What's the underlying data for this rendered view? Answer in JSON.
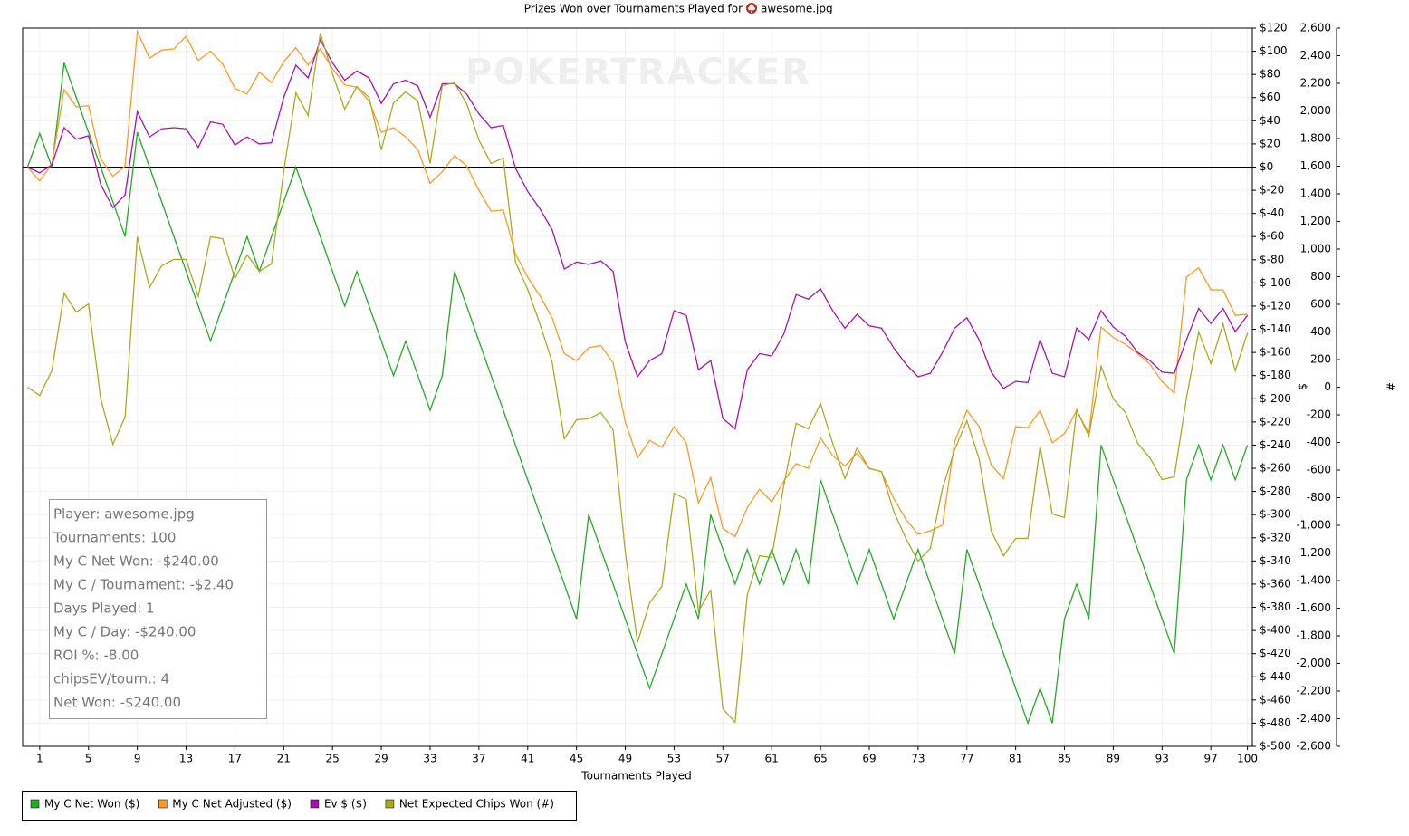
{
  "chart_data": {
    "type": "line",
    "title": "Prizes Won over Tournaments Played for",
    "player": "awesome.jpg",
    "watermark": "POKERTRACKER",
    "xlabel": "Tournaments Played",
    "ylabel": "$",
    "y2label": "#",
    "grid": true,
    "zero_line": true,
    "x": [
      0,
      1,
      2,
      3,
      4,
      5,
      6,
      7,
      8,
      9,
      10,
      11,
      12,
      13,
      14,
      15,
      16,
      17,
      18,
      19,
      20,
      21,
      22,
      23,
      24,
      25,
      26,
      27,
      28,
      29,
      30,
      31,
      32,
      33,
      34,
      35,
      36,
      37,
      38,
      39,
      40,
      41,
      42,
      43,
      44,
      45,
      46,
      47,
      48,
      49,
      50,
      51,
      52,
      53,
      54,
      55,
      56,
      57,
      58,
      59,
      60,
      61,
      62,
      63,
      64,
      65,
      66,
      67,
      68,
      69,
      70,
      71,
      72,
      73,
      74,
      75,
      76,
      77,
      78,
      79,
      80,
      81,
      82,
      83,
      84,
      85,
      86,
      87,
      88,
      89,
      90,
      91,
      92,
      93,
      94,
      95,
      96,
      97,
      98,
      99,
      100
    ],
    "xlim": [
      -0.4,
      100.4
    ],
    "xticks": [
      1,
      5,
      9,
      13,
      17,
      21,
      25,
      29,
      33,
      37,
      41,
      45,
      49,
      53,
      57,
      61,
      65,
      69,
      73,
      77,
      81,
      85,
      89,
      93,
      97,
      100
    ],
    "ylim": [
      -500,
      120
    ],
    "yticks": [
      {
        "value": 120,
        "label": "$120"
      },
      {
        "value": 100,
        "label": "$100"
      },
      {
        "value": 80,
        "label": "$80"
      },
      {
        "value": 60,
        "label": "$60"
      },
      {
        "value": 40,
        "label": "$40"
      },
      {
        "value": 20,
        "label": "$20"
      },
      {
        "value": 0,
        "label": "$0"
      },
      {
        "value": -20,
        "label": "$-20"
      },
      {
        "value": -40,
        "label": "$-40"
      },
      {
        "value": -60,
        "label": "$-60"
      },
      {
        "value": -80,
        "label": "$-80"
      },
      {
        "value": -100,
        "label": "$-100"
      },
      {
        "value": -120,
        "label": "$-120"
      },
      {
        "value": -140,
        "label": "$-140"
      },
      {
        "value": -160,
        "label": "$-160"
      },
      {
        "value": -180,
        "label": "$-180"
      },
      {
        "value": -200,
        "label": "$-200"
      },
      {
        "value": -220,
        "label": "$-220"
      },
      {
        "value": -240,
        "label": "$-240"
      },
      {
        "value": -260,
        "label": "$-260"
      },
      {
        "value": -280,
        "label": "$-280"
      },
      {
        "value": -300,
        "label": "$-300"
      },
      {
        "value": -320,
        "label": "$-320"
      },
      {
        "value": -340,
        "label": "$-340"
      },
      {
        "value": -360,
        "label": "$-360"
      },
      {
        "value": -380,
        "label": "$-380"
      },
      {
        "value": -400,
        "label": "$-400"
      },
      {
        "value": -420,
        "label": "$-420"
      },
      {
        "value": -440,
        "label": "$-440"
      },
      {
        "value": -460,
        "label": "$-460"
      },
      {
        "value": -480,
        "label": "$-480"
      },
      {
        "value": -500,
        "label": "$-500"
      }
    ],
    "y2lim": [
      -2600,
      2600
    ],
    "y2ticks": [
      {
        "value": 2600,
        "label": "2,600"
      },
      {
        "value": 2400,
        "label": "2,400"
      },
      {
        "value": 2200,
        "label": "2,200"
      },
      {
        "value": 2000,
        "label": "2,000"
      },
      {
        "value": 1800,
        "label": "1,800"
      },
      {
        "value": 1600,
        "label": "1,600"
      },
      {
        "value": 1400,
        "label": "1,400"
      },
      {
        "value": 1200,
        "label": "1,200"
      },
      {
        "value": 1000,
        "label": "1,000"
      },
      800,
      600,
      400,
      200,
      0,
      -200,
      -400,
      -600,
      -800,
      {
        "value": -1000,
        "label": "-1,000"
      },
      {
        "value": -1200,
        "label": "-1,200"
      },
      {
        "value": -1400,
        "label": "-1,400"
      },
      {
        "value": -1600,
        "label": "-1,600"
      },
      {
        "value": -1800,
        "label": "-1,800"
      },
      {
        "value": -2000,
        "label": "-2,000"
      },
      {
        "value": -2200,
        "label": "-2,200"
      },
      {
        "value": -2400,
        "label": "-2,400"
      },
      {
        "value": -2600,
        "label": "-2,600"
      }
    ],
    "series": [
      {
        "name": "My C Net Won ($)",
        "color": "#22aa22",
        "values": [
          0,
          29,
          0,
          90,
          60,
          30,
          0,
          -30,
          -60,
          30,
          0,
          -30,
          -60,
          -90,
          -120,
          -150,
          -120,
          -90,
          -60,
          -90,
          -60,
          -30,
          0,
          -30,
          -60,
          -90,
          -120,
          -90,
          -120,
          -150,
          -180,
          -150,
          -180,
          -210,
          -180,
          -90,
          -120,
          -150,
          -180,
          -210,
          -240,
          -270,
          -300,
          -330,
          -360,
          -390,
          -300,
          -330,
          -360,
          -390,
          -420,
          -450,
          -420,
          -390,
          -360,
          -390,
          -300,
          -330,
          -360,
          -330,
          -360,
          -330,
          -360,
          -330,
          -360,
          -270,
          -300,
          -330,
          -360,
          -330,
          -360,
          -390,
          -360,
          -330,
          -360,
          -390,
          -420,
          -330,
          -360,
          -390,
          -420,
          -450,
          -480,
          -450,
          -480,
          -390,
          -360,
          -390,
          -240,
          -270,
          -300,
          -330,
          -360,
          -390,
          -420,
          -270,
          -240,
          -270,
          -240,
          -270,
          -240
        ]
      },
      {
        "name": "My C Net Adjusted ($)",
        "color": "#ff9922",
        "values": [
          0,
          -12,
          3,
          67,
          52,
          53,
          7,
          -8,
          1,
          117,
          94,
          101,
          102,
          113,
          92,
          100,
          89,
          68,
          63,
          82,
          73,
          91,
          103,
          88,
          102,
          85,
          71,
          69,
          57,
          30,
          34,
          26,
          15,
          -14,
          -4,
          10,
          1,
          -20,
          -38,
          -37,
          -75,
          -95,
          -111,
          -130,
          -161,
          -167,
          -156,
          -154,
          -169,
          -220,
          -251,
          -236,
          -242,
          -224,
          -238,
          -290,
          -268,
          -312,
          -319,
          -294,
          -278,
          -289,
          -271,
          -256,
          -260,
          -234,
          -249,
          -258,
          -247,
          -260,
          -263,
          -286,
          -304,
          -317,
          -314,
          -309,
          -237,
          -210,
          -224,
          -257,
          -269,
          -224,
          -225,
          -210,
          -238,
          -230,
          -210,
          -230,
          -138,
          -147,
          -153,
          -161,
          -170,
          -185,
          -195,
          -95,
          -87,
          -106,
          -106,
          -128,
          -127
        ]
      },
      {
        "name": "Ev $ ($)",
        "color": "#aa11aa",
        "values": [
          0,
          -5,
          2,
          34,
          24,
          27,
          -15,
          -35,
          -24,
          48,
          26,
          33,
          34,
          33,
          17,
          39,
          37,
          19,
          26,
          20,
          21,
          60,
          88,
          77,
          110,
          90,
          75,
          83,
          77,
          55,
          72,
          75,
          70,
          43,
          72,
          72,
          63,
          46,
          34,
          36,
          -1,
          -21,
          -36,
          -54,
          -88,
          -82,
          -84,
          -81,
          -90,
          -151,
          -181,
          -167,
          -161,
          -124,
          -128,
          -175,
          -167,
          -217,
          -226,
          -175,
          -161,
          -163,
          -144,
          -110,
          -114,
          -105,
          -124,
          -139,
          -127,
          -137,
          -139,
          -156,
          -170,
          -181,
          -178,
          -160,
          -139,
          -130,
          -149,
          -177,
          -191,
          -185,
          -186,
          -149,
          -178,
          -181,
          -139,
          -149,
          -124,
          -138,
          -146,
          -160,
          -167,
          -177,
          -178,
          -149,
          -122,
          -135,
          -122,
          -142,
          -128
        ]
      },
      {
        "name": "Net Expected Chips Won (#)",
        "color": "#aaaa22",
        "axis": "y2",
        "values": [
          0,
          -60,
          120,
          680,
          544,
          603,
          -85,
          -413,
          -216,
          1089,
          721,
          879,
          925,
          925,
          656,
          1089,
          1075,
          787,
          957,
          839,
          892,
          1561,
          2131,
          1967,
          2564,
          2269,
          2013,
          2177,
          2098,
          1718,
          2059,
          2138,
          2072,
          1620,
          2184,
          2203,
          2052,
          1790,
          1620,
          1659,
          905,
          708,
          459,
          184,
          -374,
          -236,
          -229,
          -184,
          -308,
          -1193,
          -1849,
          -1560,
          -1443,
          -767,
          -813,
          -1620,
          -1469,
          -2328,
          -2426,
          -1502,
          -1220,
          -1233,
          -708,
          -262,
          -302,
          -118,
          -406,
          -662,
          -439,
          -590,
          -610,
          -898,
          -1095,
          -1259,
          -1167,
          -734,
          -452,
          -243,
          -518,
          -1042,
          -1220,
          -1095,
          -1095,
          -426,
          -918,
          -944,
          -164,
          -354,
          151,
          -85,
          -184,
          -406,
          -511,
          -669,
          -649,
          -78,
          400,
          170,
          459,
          118,
          393
        ]
      }
    ],
    "stats": [
      "Player: awesome.jpg",
      "Tournaments: 100",
      "My C Net Won: -$240.00",
      "My C / Tournament: -$2.40",
      "Days Played: 1",
      "My C / Day: -$240.00",
      "ROI %: -8.00",
      "chipsEV/tourn.: 4",
      "Net Won: -$240.00"
    ]
  }
}
